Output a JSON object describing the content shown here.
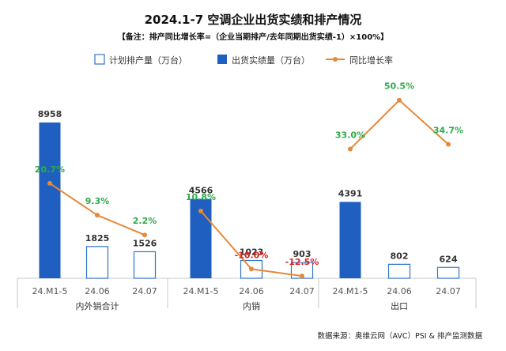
{
  "chart_data": {
    "type": "bar",
    "title": "2024.1-7 空调企业出货实绩和排产情况",
    "subtitle": "【备注：排产同比增长率=（企业当期排产/去年同期出货实绩-1）×100%】",
    "legend": {
      "position": "top",
      "entries": [
        "计划排产量（万台）",
        "出货实绩量（万台）",
        "同比增长率"
      ]
    },
    "groups": [
      {
        "name": "内外销合计",
        "categories": [
          "24.M1-5",
          "24.06",
          "24.07"
        ],
        "bar_types": [
          "actual",
          "plan",
          "plan"
        ],
        "values": [
          8958,
          1825,
          1526
        ],
        "value_labels": [
          "8958",
          "1825",
          "1526"
        ],
        "growth": [
          20.7,
          9.3,
          2.2
        ],
        "growth_labels": [
          "20.7%",
          "9.3%",
          "2.2%"
        ]
      },
      {
        "name": "内销",
        "categories": [
          "24.M1-5",
          "24.06",
          "24.07"
        ],
        "bar_types": [
          "actual",
          "plan",
          "plan"
        ],
        "values": [
          4566,
          1023,
          903
        ],
        "value_labels": [
          "4566",
          "1023",
          "903"
        ],
        "growth": [
          10.8,
          -10.0,
          -12.5
        ],
        "growth_labels": [
          "10.8%",
          "-10.0%",
          "-12.5%"
        ]
      },
      {
        "name": "出口",
        "categories": [
          "24.M1-5",
          "24.06",
          "24.07"
        ],
        "bar_types": [
          "actual",
          "plan",
          "plan"
        ],
        "values": [
          4391,
          802,
          624
        ],
        "value_labels": [
          "4391",
          "802",
          "624"
        ],
        "growth": [
          33.0,
          50.5,
          34.7
        ],
        "growth_labels": [
          "33.0%",
          "50.5%",
          "34.7%"
        ]
      }
    ],
    "source": "数据来源：奥维云网（AVC）PSI & 排产监测数据",
    "colors": {
      "actual_fill": "#1f5fbf",
      "plan_stroke": "#2e75c8",
      "line": "#e5893a",
      "positive_label": "#2eaa4a",
      "negative_label": "#e02020",
      "value_label": "#333333"
    }
  }
}
